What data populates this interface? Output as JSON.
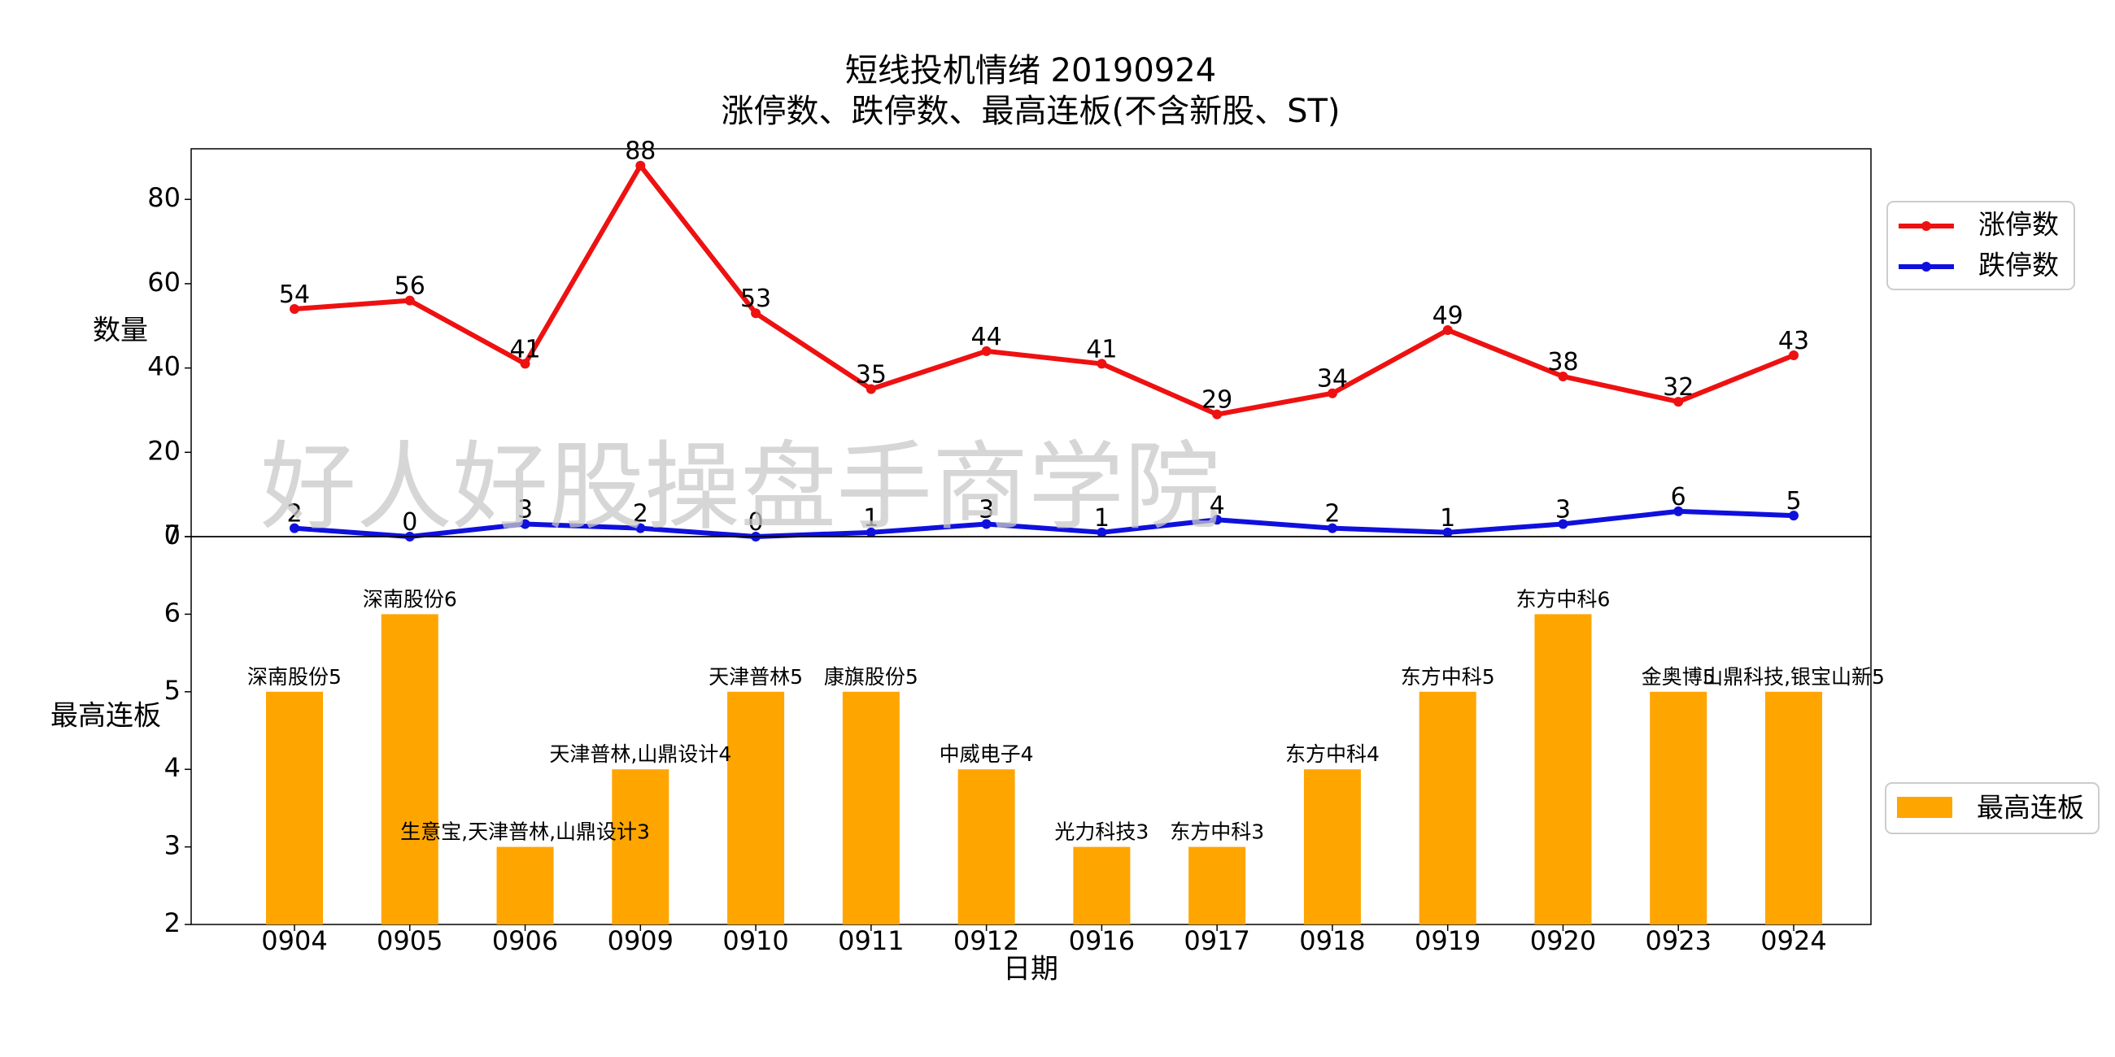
{
  "chart_data": [
    {
      "type": "line",
      "title": "短线投机情绪 20190924",
      "subtitle": "涨停数、跌停数、最高连板(不含新股、ST)",
      "xlabel": "",
      "ylabel": "数量",
      "ylim": [
        0,
        92
      ],
      "yticks": [
        "0",
        "20",
        "40",
        "60",
        "80"
      ],
      "grid": false,
      "legend_position": "right",
      "categories": [
        "0904",
        "0905",
        "0906",
        "0909",
        "0910",
        "0911",
        "0912",
        "0916",
        "0917",
        "0918",
        "0919",
        "0920",
        "0923",
        "0924"
      ],
      "series": [
        {
          "name": "涨停数",
          "color": "#ee1111",
          "values": [
            54,
            56,
            41,
            88,
            53,
            35,
            44,
            41,
            29,
            34,
            49,
            38,
            32,
            43
          ]
        },
        {
          "name": "跌停数",
          "color": "#1010dd",
          "values": [
            2,
            0,
            3,
            2,
            0,
            1,
            3,
            1,
            4,
            2,
            1,
            3,
            6,
            5
          ]
        }
      ]
    },
    {
      "type": "bar",
      "xlabel": "日期",
      "ylabel": "最高连板",
      "ylim": [
        2,
        7
      ],
      "yticks": [
        "2",
        "3",
        "4",
        "5",
        "6",
        "7"
      ],
      "grid": false,
      "legend_position": "right",
      "categories": [
        "0904",
        "0905",
        "0906",
        "0909",
        "0910",
        "0911",
        "0912",
        "0916",
        "0917",
        "0918",
        "0919",
        "0920",
        "0923",
        "0924"
      ],
      "series": [
        {
          "name": "最高连板",
          "color": "#ffa500",
          "values": [
            5,
            6,
            3,
            4,
            5,
            5,
            4,
            3,
            3,
            4,
            5,
            6,
            5,
            5
          ]
        }
      ],
      "bar_labels": [
        "深南股份5",
        "深南股份6",
        "生意宝,天津普林,山鼎设计3",
        "天津普林,山鼎设计4",
        "天津普林5",
        "康旗股份5",
        "中威电子4",
        "光力科技3",
        "东方中科3",
        "东方中科4",
        "东方中科5",
        "东方中科6",
        "金奥博5",
        "山鼎科技,银宝山新5"
      ]
    }
  ],
  "watermark": "好人好股操盘手商学院"
}
